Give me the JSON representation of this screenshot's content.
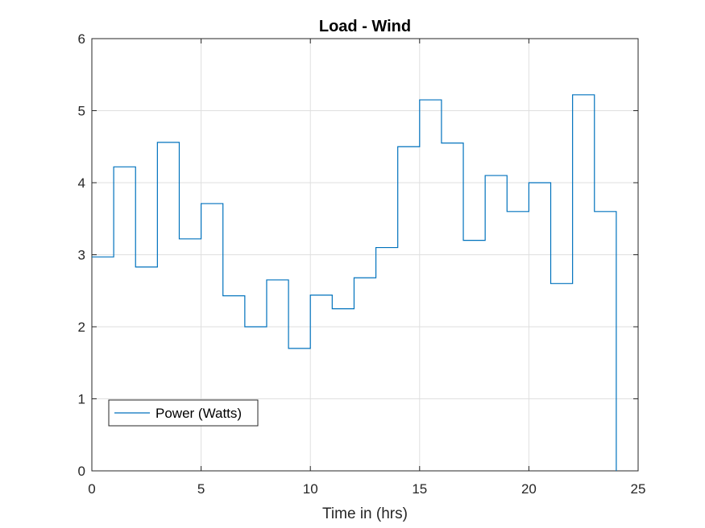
{
  "chart_data": {
    "type": "line",
    "step": true,
    "title": "Load - Wind",
    "xlabel": "Time in (hrs)",
    "ylabel": "",
    "xlim": [
      0,
      25
    ],
    "ylim": [
      0,
      6
    ],
    "xticks": [
      0,
      5,
      10,
      15,
      20,
      25
    ],
    "yticks": [
      0,
      1,
      2,
      3,
      4,
      5,
      6
    ],
    "grid": true,
    "legend_location": "bottom-left",
    "series": [
      {
        "name": "Power (Watts)",
        "color": "#0072BD",
        "x": [
          0,
          1,
          2,
          3,
          4,
          5,
          6,
          7,
          8,
          9,
          10,
          11,
          12,
          13,
          14,
          15,
          16,
          17,
          18,
          19,
          20,
          21,
          22,
          23,
          24
        ],
        "y": [
          2.97,
          4.22,
          2.83,
          4.56,
          3.22,
          3.71,
          2.43,
          2.0,
          2.65,
          1.7,
          2.44,
          2.25,
          2.68,
          3.1,
          4.5,
          5.15,
          4.55,
          3.2,
          4.1,
          3.6,
          4.0,
          2.6,
          5.22,
          3.6,
          0.0
        ]
      }
    ]
  }
}
